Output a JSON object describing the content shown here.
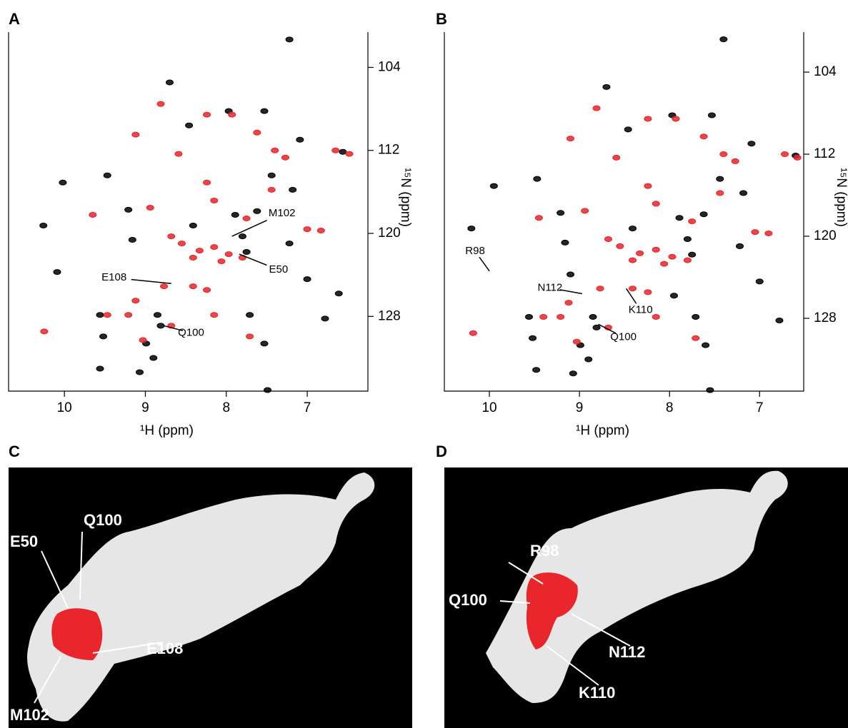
{
  "figure_labels": [
    "A",
    "B",
    "C",
    "D"
  ],
  "chart_data": [
    {
      "type": "scatter",
      "xlabel": "¹H (ppm)",
      "ylabel": "¹⁵N (ppm)",
      "xlim": [
        10.69,
        6.25
      ],
      "ylim": [
        135.2,
        100.6
      ],
      "xticks": [
        10,
        9,
        8,
        7
      ],
      "yticks": [
        104,
        112,
        120,
        128
      ],
      "series": [
        {
          "color": "#000000",
          "x": [
            10.26,
            10.02,
            9.47,
            9.21,
            9.16,
            9.56,
            9.52,
            10.09,
            8.85,
            8.9,
            8.41,
            7.89,
            7.8,
            7.62,
            7.44,
            7.18,
            7.22,
            7.0,
            6.78,
            6.61,
            7.49,
            7.22,
            8.7,
            8.46,
            7.97,
            7.53,
            7.09,
            7.71,
            7.53,
            9.07,
            9.56,
            8.99,
            6.56,
            7.75,
            8.81
          ],
          "values": [
            119.24,
            115.1,
            114.41,
            117.72,
            120.62,
            127.86,
            129.93,
            123.72,
            127.86,
            132.0,
            119.24,
            118.21,
            120.28,
            117.86,
            114.41,
            115.79,
            120.97,
            124.41,
            128.21,
            125.79,
            135.1,
            101.31,
            105.45,
            109.59,
            108.21,
            108.21,
            110.97,
            127.86,
            130.62,
            133.38,
            133.03,
            130.62,
            112.14,
            121.79,
            128.9
          ]
        },
        {
          "color": "#e3262b",
          "x": [
            10.25,
            9.12,
            8.81,
            8.24,
            7.93,
            7.62,
            7.4,
            7.27,
            6.65,
            6.48,
            8.59,
            8.24,
            8.15,
            8.55,
            8.33,
            8.15,
            7.97,
            7.8,
            8.41,
            8.77,
            8.41,
            8.24,
            9.12,
            9.21,
            8.68,
            9.03,
            8.15,
            7.71,
            7.0,
            6.83,
            9.65,
            8.94,
            8.68,
            7.75,
            9.47,
            7.44,
            8.06
          ],
          "values": [
            129.45,
            110.48,
            107.52,
            108.55,
            108.55,
            110.28,
            112.0,
            112.69,
            112.0,
            112.34,
            112.34,
            115.1,
            116.83,
            120.97,
            121.66,
            121.31,
            122.0,
            122.34,
            122.34,
            125.1,
            125.1,
            125.45,
            126.48,
            127.86,
            128.9,
            130.28,
            127.86,
            129.93,
            119.59,
            119.72,
            118.21,
            117.52,
            120.28,
            118.55,
            127.86,
            115.79,
            122.69
          ]
        }
      ],
      "annotations": [
        {
          "text": "M102",
          "x": 7.93,
          "y": 120.28
        },
        {
          "text": "E50",
          "x": 7.84,
          "y": 122.0
        },
        {
          "text": "E108",
          "x": 8.68,
          "y": 124.83
        },
        {
          "text": "Q100",
          "x": 8.77,
          "y": 128.9
        }
      ]
    },
    {
      "type": "scatter",
      "xlabel": "¹H (ppm)",
      "ylabel": "¹⁵N (ppm)",
      "xlim": [
        10.5,
        6.51
      ],
      "ylim": [
        135.1,
        100.1
      ],
      "xticks": [
        10,
        9,
        8,
        7
      ],
      "yticks": [
        104,
        112,
        120,
        128
      ],
      "series": [
        {
          "color": "#000000",
          "x": [
            10.2,
            9.95,
            9.47,
            9.21,
            9.16,
            9.56,
            9.52,
            9.1,
            8.85,
            8.9,
            8.41,
            7.89,
            7.8,
            7.62,
            7.44,
            7.18,
            7.22,
            7.0,
            6.78,
            7.95,
            7.55,
            7.4,
            8.7,
            8.46,
            7.97,
            7.53,
            7.09,
            7.71,
            7.6,
            9.07,
            9.48,
            8.99,
            6.6,
            7.75,
            8.81
          ],
          "values": [
            119.24,
            115.1,
            114.41,
            117.72,
            120.62,
            127.86,
            129.93,
            123.72,
            127.86,
            132.0,
            119.24,
            118.21,
            120.28,
            117.86,
            114.41,
            115.79,
            120.97,
            124.41,
            128.21,
            125.79,
            135.0,
            100.8,
            105.45,
            109.59,
            108.21,
            108.21,
            110.97,
            127.86,
            130.62,
            133.38,
            133.03,
            130.62,
            112.14,
            121.79,
            128.9
          ]
        },
        {
          "color": "#e3262b",
          "x": [
            10.18,
            9.1,
            8.81,
            8.24,
            7.93,
            7.62,
            7.4,
            7.27,
            6.72,
            6.58,
            8.59,
            8.24,
            8.15,
            8.55,
            8.33,
            8.15,
            7.97,
            7.8,
            8.41,
            8.77,
            8.41,
            8.24,
            9.12,
            9.21,
            8.68,
            9.03,
            8.15,
            7.71,
            7.05,
            6.9,
            9.45,
            8.94,
            8.68,
            7.75,
            9.4,
            7.44,
            8.06
          ],
          "values": [
            129.45,
            110.48,
            107.52,
            108.55,
            108.55,
            110.28,
            112.0,
            112.69,
            112.0,
            112.34,
            112.34,
            115.1,
            116.83,
            120.97,
            121.66,
            121.31,
            122.0,
            122.34,
            122.34,
            125.1,
            125.1,
            125.45,
            126.48,
            127.86,
            128.9,
            130.28,
            127.86,
            129.93,
            119.59,
            119.72,
            118.21,
            117.52,
            120.28,
            118.55,
            127.86,
            115.79,
            122.69
          ]
        }
      ],
      "annotations": [
        {
          "text": "R98",
          "x": 10.0,
          "y": 123.4
        },
        {
          "text": "N112",
          "x": 8.97,
          "y": 125.6
        },
        {
          "text": "K110",
          "x": 8.48,
          "y": 125.1
        },
        {
          "text": "Q100",
          "x": 8.79,
          "y": 128.58
        }
      ]
    }
  ],
  "structures": [
    {
      "labels": [
        "Q100",
        "E50",
        "M102",
        "E108"
      ]
    },
    {
      "labels": [
        "R98",
        "Q100",
        "N112",
        "K110"
      ]
    }
  ]
}
